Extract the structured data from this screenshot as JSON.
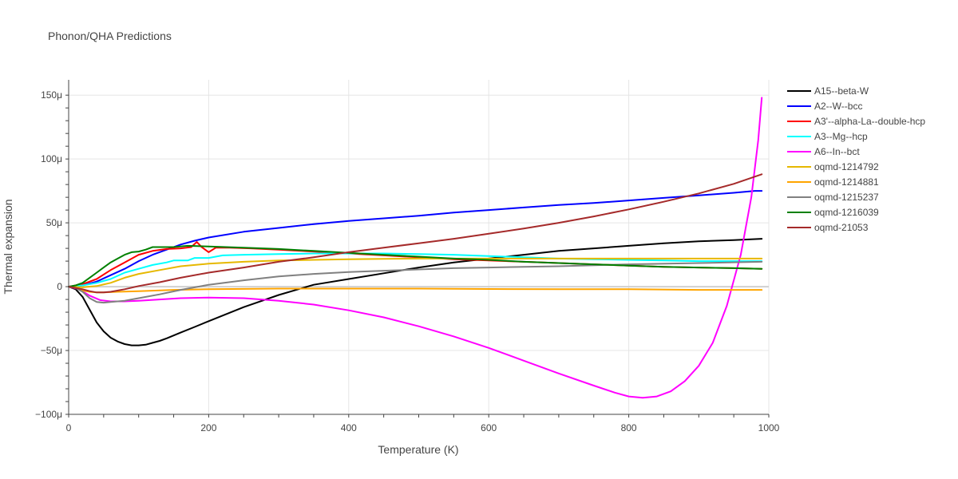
{
  "chart_data": {
    "type": "line",
    "title": "Phonon/QHA Predictions",
    "xlabel": "Temperature (K)",
    "ylabel": "Thermal expansion",
    "xlim": [
      0,
      1000
    ],
    "ylim": [
      -100,
      162
    ],
    "x_ticks": [
      0,
      200,
      400,
      600,
      800,
      1000
    ],
    "x_tick_labels": [
      "0",
      "200",
      "400",
      "600",
      "800",
      "1000"
    ],
    "y_ticks": [
      -100,
      -50,
      0,
      50,
      100,
      150
    ],
    "y_tick_labels": [
      "−100μ",
      "−50μ",
      "0",
      "50μ",
      "100μ",
      "150μ"
    ],
    "grid": true,
    "legend_position": "right",
    "series": [
      {
        "name": "A15--beta-W",
        "color": "#000000",
        "points": [
          [
            0,
            0
          ],
          [
            10,
            -2
          ],
          [
            20,
            -8
          ],
          [
            30,
            -18
          ],
          [
            40,
            -28
          ],
          [
            50,
            -35
          ],
          [
            60,
            -40
          ],
          [
            70,
            -43
          ],
          [
            80,
            -45
          ],
          [
            90,
            -46
          ],
          [
            100,
            -46
          ],
          [
            110,
            -45.5
          ],
          [
            120,
            -44
          ],
          [
            130,
            -42.5
          ],
          [
            140,
            -40.5
          ],
          [
            160,
            -36
          ],
          [
            180,
            -31.5
          ],
          [
            200,
            -27
          ],
          [
            250,
            -16
          ],
          [
            300,
            -6.5
          ],
          [
            350,
            1.5
          ],
          [
            400,
            6
          ],
          [
            450,
            10.5
          ],
          [
            500,
            15
          ],
          [
            550,
            19
          ],
          [
            600,
            22
          ],
          [
            650,
            25
          ],
          [
            700,
            28
          ],
          [
            750,
            30
          ],
          [
            800,
            32
          ],
          [
            850,
            34
          ],
          [
            900,
            35.5
          ],
          [
            950,
            36.5
          ],
          [
            990,
            37.5
          ]
        ]
      },
      {
        "name": "A2--W--bcc",
        "color": "#0000ff",
        "points": [
          [
            0,
            0
          ],
          [
            20,
            1
          ],
          [
            40,
            4
          ],
          [
            60,
            9
          ],
          [
            80,
            14
          ],
          [
            100,
            20
          ],
          [
            120,
            25
          ],
          [
            140,
            29
          ],
          [
            160,
            33
          ],
          [
            180,
            36
          ],
          [
            200,
            38.5
          ],
          [
            250,
            43
          ],
          [
            300,
            46
          ],
          [
            350,
            49
          ],
          [
            400,
            51.5
          ],
          [
            450,
            53.5
          ],
          [
            500,
            55.5
          ],
          [
            550,
            58
          ],
          [
            600,
            60
          ],
          [
            650,
            62
          ],
          [
            700,
            64
          ],
          [
            750,
            65.5
          ],
          [
            800,
            67.5
          ],
          [
            850,
            69.5
          ],
          [
            900,
            71.5
          ],
          [
            950,
            73.5
          ],
          [
            980,
            75
          ],
          [
            990,
            75
          ]
        ]
      },
      {
        "name": "A3'--alpha-La--double-hcp",
        "color": "#ff0000",
        "points": [
          [
            0,
            0
          ],
          [
            20,
            2
          ],
          [
            40,
            6
          ],
          [
            60,
            13
          ],
          [
            80,
            19
          ],
          [
            100,
            25
          ],
          [
            120,
            28
          ],
          [
            140,
            29.5
          ],
          [
            160,
            30
          ],
          [
            175,
            31
          ],
          [
            183,
            35
          ],
          [
            190,
            31
          ],
          [
            200,
            27
          ],
          [
            210,
            30.5
          ],
          [
            230,
            30.5
          ],
          [
            260,
            30
          ],
          [
            300,
            29
          ],
          [
            350,
            27.5
          ],
          [
            400,
            26
          ],
          [
            450,
            24.5
          ],
          [
            500,
            23
          ],
          [
            550,
            21.5
          ],
          [
            600,
            20.5
          ],
          [
            650,
            19.5
          ],
          [
            700,
            18.5
          ],
          [
            750,
            17.5
          ],
          [
            800,
            16.5
          ],
          [
            850,
            15.5
          ],
          [
            900,
            15
          ],
          [
            950,
            14.5
          ],
          [
            990,
            14
          ]
        ]
      },
      {
        "name": "A3--Mg--hcp",
        "color": "#00ffff",
        "points": [
          [
            0,
            0
          ],
          [
            20,
            1
          ],
          [
            40,
            3
          ],
          [
            60,
            6
          ],
          [
            80,
            11
          ],
          [
            100,
            14
          ],
          [
            120,
            17
          ],
          [
            140,
            19
          ],
          [
            150,
            20.5
          ],
          [
            170,
            20.5
          ],
          [
            180,
            22.5
          ],
          [
            200,
            22.5
          ],
          [
            220,
            24.5
          ],
          [
            250,
            25
          ],
          [
            300,
            25.5
          ],
          [
            350,
            26
          ],
          [
            400,
            26
          ],
          [
            450,
            26
          ],
          [
            500,
            25.5
          ],
          [
            550,
            25
          ],
          [
            600,
            24
          ],
          [
            650,
            23
          ],
          [
            700,
            22
          ],
          [
            750,
            21.5
          ],
          [
            800,
            21
          ],
          [
            850,
            20.5
          ],
          [
            900,
            20
          ],
          [
            950,
            20
          ],
          [
            990,
            20
          ]
        ]
      },
      {
        "name": "A6--In--bct",
        "color": "#ff00ff",
        "points": [
          [
            0,
            0
          ],
          [
            15,
            -2
          ],
          [
            30,
            -7
          ],
          [
            45,
            -10.5
          ],
          [
            60,
            -11.5
          ],
          [
            80,
            -11.5
          ],
          [
            100,
            -11
          ],
          [
            130,
            -10
          ],
          [
            160,
            -9
          ],
          [
            200,
            -8.5
          ],
          [
            250,
            -9
          ],
          [
            300,
            -11
          ],
          [
            350,
            -14
          ],
          [
            400,
            -18.5
          ],
          [
            450,
            -24
          ],
          [
            500,
            -31
          ],
          [
            550,
            -39
          ],
          [
            600,
            -48
          ],
          [
            650,
            -58
          ],
          [
            700,
            -68
          ],
          [
            750,
            -77.5
          ],
          [
            780,
            -83
          ],
          [
            800,
            -86
          ],
          [
            820,
            -87
          ],
          [
            840,
            -86
          ],
          [
            860,
            -82
          ],
          [
            880,
            -74
          ],
          [
            900,
            -62
          ],
          [
            920,
            -44
          ],
          [
            940,
            -15
          ],
          [
            960,
            25
          ],
          [
            975,
            70
          ],
          [
            985,
            115
          ],
          [
            990,
            148
          ]
        ]
      },
      {
        "name": "oqmd-1214792",
        "color": "#e6b800",
        "points": [
          [
            0,
            0
          ],
          [
            20,
            -0.5
          ],
          [
            40,
            0.5
          ],
          [
            60,
            3
          ],
          [
            80,
            7
          ],
          [
            100,
            10
          ],
          [
            130,
            13
          ],
          [
            160,
            16
          ],
          [
            200,
            18
          ],
          [
            250,
            19.5
          ],
          [
            300,
            20.5
          ],
          [
            350,
            21
          ],
          [
            400,
            21.5
          ],
          [
            450,
            21.8
          ],
          [
            500,
            22
          ],
          [
            550,
            22
          ],
          [
            600,
            22
          ],
          [
            700,
            22
          ],
          [
            800,
            22
          ],
          [
            900,
            22
          ],
          [
            990,
            22
          ]
        ]
      },
      {
        "name": "oqmd-1214881",
        "color": "#ffa500",
        "points": [
          [
            0,
            0
          ],
          [
            10,
            -1
          ],
          [
            20,
            -3
          ],
          [
            30,
            -4
          ],
          [
            40,
            -4.5
          ],
          [
            50,
            -4.5
          ],
          [
            70,
            -4
          ],
          [
            100,
            -3.5
          ],
          [
            150,
            -2.5
          ],
          [
            200,
            -2
          ],
          [
            300,
            -1.5
          ],
          [
            400,
            -1.5
          ],
          [
            500,
            -1.5
          ],
          [
            600,
            -1.8
          ],
          [
            700,
            -2
          ],
          [
            800,
            -2
          ],
          [
            900,
            -2.5
          ],
          [
            990,
            -2.5
          ]
        ]
      },
      {
        "name": "oqmd-1215237",
        "color": "#808080",
        "points": [
          [
            0,
            0
          ],
          [
            10,
            -1
          ],
          [
            20,
            -4
          ],
          [
            30,
            -9
          ],
          [
            40,
            -12
          ],
          [
            50,
            -12.5
          ],
          [
            60,
            -12
          ],
          [
            80,
            -11
          ],
          [
            100,
            -9
          ],
          [
            130,
            -6
          ],
          [
            160,
            -2.5
          ],
          [
            200,
            1.5
          ],
          [
            250,
            5
          ],
          [
            300,
            8
          ],
          [
            350,
            10
          ],
          [
            400,
            11.5
          ],
          [
            450,
            12.5
          ],
          [
            500,
            13.5
          ],
          [
            550,
            14.5
          ],
          [
            600,
            15
          ],
          [
            700,
            16
          ],
          [
            800,
            17.5
          ],
          [
            900,
            18.5
          ],
          [
            990,
            19.5
          ]
        ]
      },
      {
        "name": "oqmd-1216039",
        "color": "#008000",
        "points": [
          [
            0,
            0
          ],
          [
            10,
            1
          ],
          [
            20,
            3
          ],
          [
            30,
            7
          ],
          [
            40,
            11
          ],
          [
            50,
            15
          ],
          [
            60,
            19
          ],
          [
            70,
            22
          ],
          [
            80,
            25
          ],
          [
            90,
            27
          ],
          [
            100,
            27.5
          ],
          [
            110,
            29
          ],
          [
            120,
            31
          ],
          [
            130,
            31
          ],
          [
            150,
            31
          ],
          [
            170,
            32
          ],
          [
            200,
            31.5
          ],
          [
            250,
            30.5
          ],
          [
            300,
            29.5
          ],
          [
            350,
            28
          ],
          [
            400,
            26.5
          ],
          [
            450,
            25
          ],
          [
            500,
            23.5
          ],
          [
            550,
            22
          ],
          [
            600,
            21
          ],
          [
            650,
            19.5
          ],
          [
            700,
            18.5
          ],
          [
            750,
            17.5
          ],
          [
            800,
            16.5
          ],
          [
            850,
            15.5
          ],
          [
            900,
            15
          ],
          [
            950,
            14.5
          ],
          [
            990,
            14
          ]
        ]
      },
      {
        "name": "oqmd-21053",
        "color": "#a52a2a",
        "points": [
          [
            0,
            0
          ],
          [
            20,
            -2
          ],
          [
            30,
            -3.5
          ],
          [
            40,
            -4.5
          ],
          [
            50,
            -4.5
          ],
          [
            60,
            -4
          ],
          [
            80,
            -2
          ],
          [
            100,
            0.5
          ],
          [
            130,
            3.5
          ],
          [
            160,
            7
          ],
          [
            200,
            11
          ],
          [
            250,
            15
          ],
          [
            300,
            19.5
          ],
          [
            350,
            23
          ],
          [
            400,
            27
          ],
          [
            450,
            30.5
          ],
          [
            500,
            34
          ],
          [
            550,
            37.5
          ],
          [
            600,
            41.5
          ],
          [
            650,
            45.5
          ],
          [
            700,
            50
          ],
          [
            750,
            55
          ],
          [
            800,
            60.5
          ],
          [
            850,
            66.5
          ],
          [
            900,
            73
          ],
          [
            950,
            80.5
          ],
          [
            990,
            88
          ]
        ]
      }
    ]
  }
}
